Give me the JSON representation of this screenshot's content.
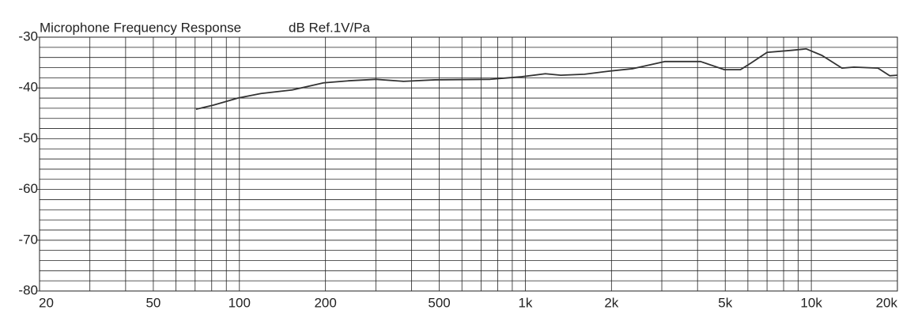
{
  "chart_data": {
    "type": "line",
    "title": "Microphone Frequency Response",
    "subtitle": "dB Ref.1V/Pa",
    "x": [
      70.5,
      81,
      98.8,
      119,
      153,
      197,
      240,
      300,
      375,
      483,
      754,
      970,
      1175,
      1330,
      1610,
      1960,
      2380,
      3070,
      4100,
      4970,
      5650,
      6150,
      7000,
      8500,
      9600,
      10900,
      12800,
      14100,
      17100,
      18800,
      20000
    ],
    "values": [
      -44.2,
      -43.4,
      -42.0,
      -41.1,
      -40.4,
      -39.0,
      -38.6,
      -38.3,
      -38.7,
      -38.4,
      -38.3,
      -37.8,
      -37.2,
      -37.5,
      -37.3,
      -36.7,
      -36.2,
      -34.8,
      -34.8,
      -36.4,
      -36.4,
      -35.1,
      -33.0,
      -32.6,
      -32.3,
      -33.6,
      -36.1,
      -35.9,
      -36.1,
      -37.6,
      -37.5
    ],
    "color": "#333333",
    "xlog": true,
    "xlim": [
      20,
      20000
    ],
    "xticks": [
      20,
      50,
      100,
      200,
      500,
      {
        "value": 1000,
        "label": "1k"
      },
      {
        "value": 2000,
        "label": "2k"
      },
      {
        "value": 5000,
        "label": "5k"
      },
      {
        "value": 10000,
        "label": "10k"
      },
      {
        "value": 20000,
        "label": "20k"
      }
    ],
    "xminor": [
      30,
      40,
      60,
      70,
      80,
      90,
      300,
      400,
      600,
      700,
      800,
      900,
      3000,
      4000,
      6000,
      7000,
      8000,
      9000
    ],
    "ylim": [
      -80,
      -30
    ],
    "yticks": [
      -80,
      -70,
      -60,
      -50,
      -40,
      -30
    ],
    "yminor": [
      -78,
      -76,
      -74,
      -72,
      -68,
      -66,
      -64,
      -62,
      -58,
      -56,
      -54,
      -52,
      -48,
      -46,
      -44,
      -42,
      -38,
      -36,
      -34,
      -32
    ],
    "grid": true
  }
}
